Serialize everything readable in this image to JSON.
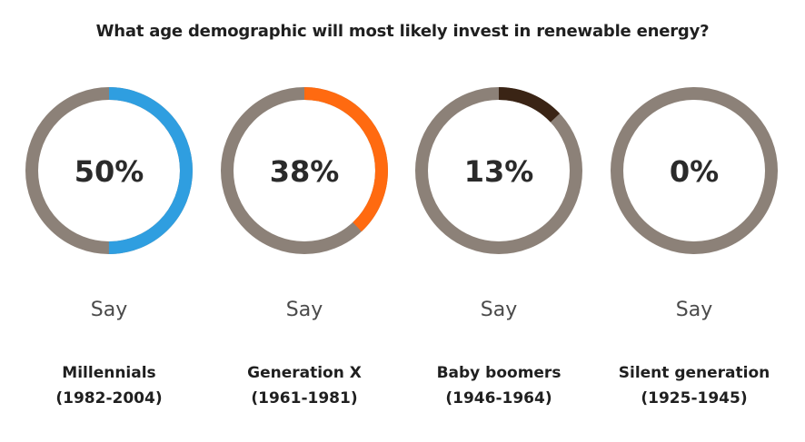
{
  "chart_data": {
    "type": "pie",
    "title": "What age demographic will most likely invest in renewable energy?",
    "ring_color": "#8c8178",
    "series": [
      {
        "value_label": "50%",
        "value": 50,
        "say_label": "Say",
        "group_line1": "Millennials",
        "group_line2": "(1982-2004)",
        "color": "#2f9ee0"
      },
      {
        "value_label": "38%",
        "value": 38,
        "say_label": "Say",
        "group_line1": "Generation X",
        "group_line2": "(1961-1981)",
        "color": "#ff6a10"
      },
      {
        "value_label": "13%",
        "value": 13,
        "say_label": "Say",
        "group_line1": "Baby boomers",
        "group_line2": "(1946-1964)",
        "color": "#3a2415"
      },
      {
        "value_label": "0%",
        "value": 0,
        "say_label": "Say",
        "group_line1": "Silent generation",
        "group_line2": "(1925-1945)",
        "color": "#8c8178"
      }
    ]
  }
}
